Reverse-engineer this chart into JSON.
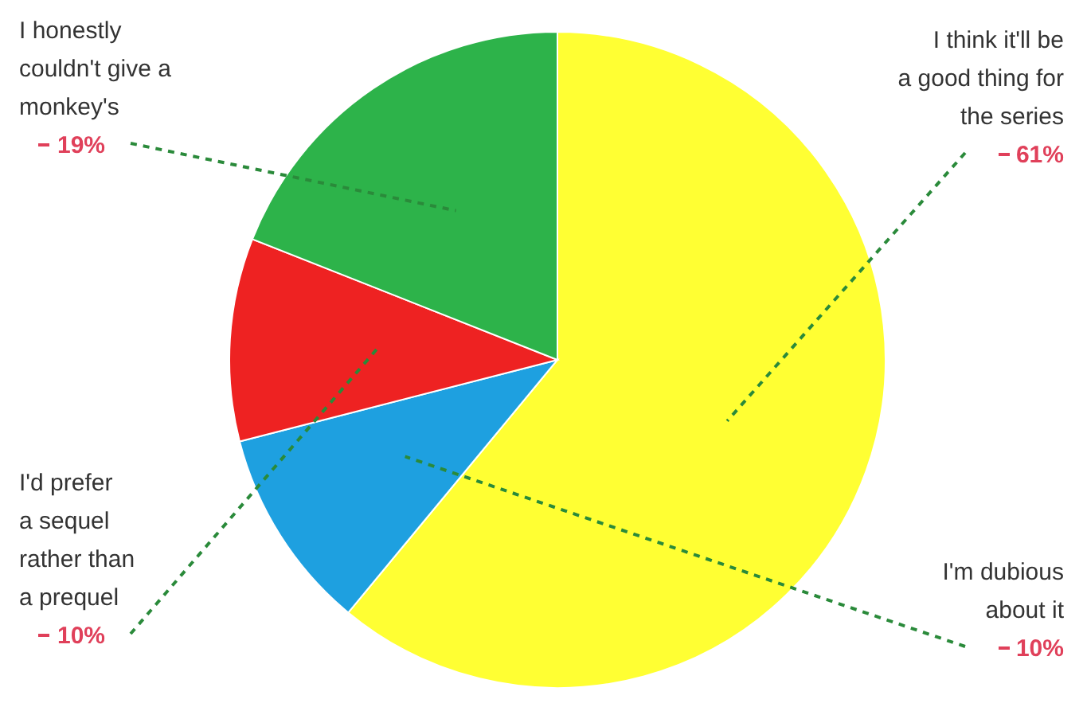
{
  "chart_data": {
    "type": "pie",
    "categories": [
      "I think it'll be a good thing for the series",
      "I'm dubious about it",
      "I'd prefer a sequel rather than a prequel",
      "I honestly couldn't give a monkey's"
    ],
    "values": [
      61,
      10,
      10,
      19
    ],
    "colors": [
      "#ffff33",
      "#1ea0e0",
      "#ee2222",
      "#2db34a"
    ],
    "value_labels": [
      "61%",
      "10%",
      "10%",
      "19%"
    ],
    "legend": false
  }
}
